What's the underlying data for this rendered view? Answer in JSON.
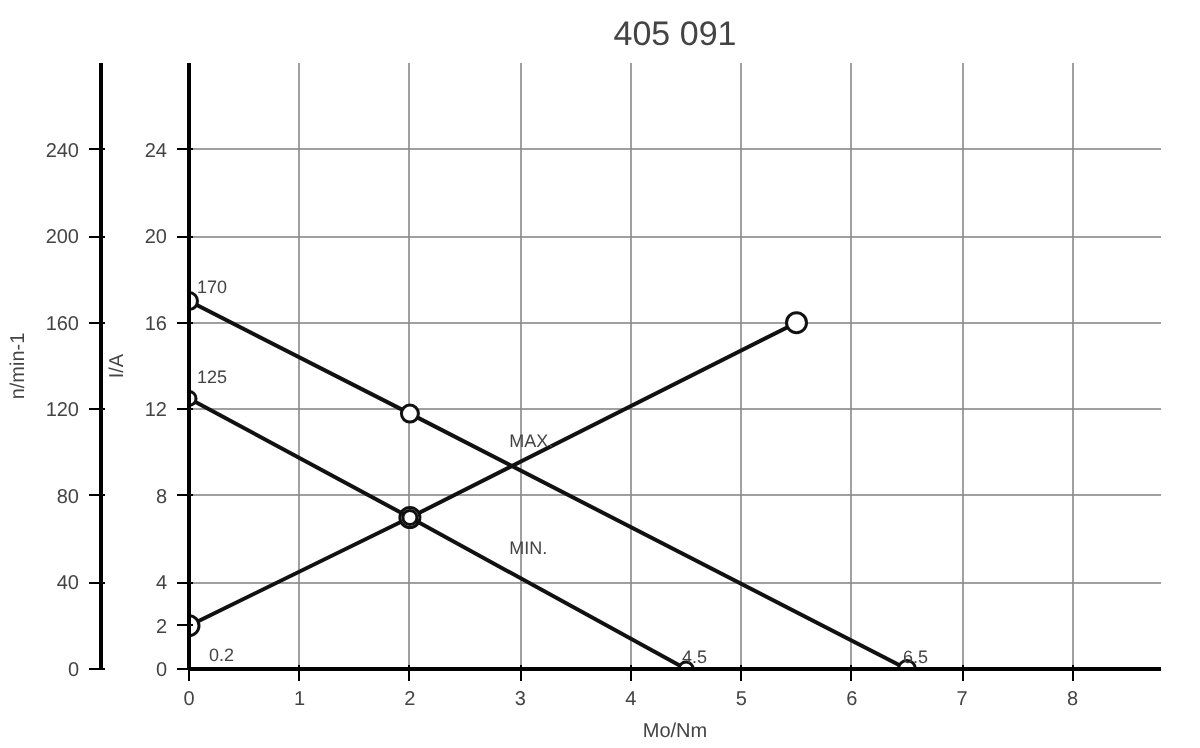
{
  "chart_data": {
    "type": "line",
    "title": "405 091",
    "xlabel": "Mo/Nm",
    "ylabel": "I/A",
    "y2label": "n/min-1",
    "xlim": [
      0,
      8.8
    ],
    "xticks": [
      0,
      1,
      2,
      3,
      4,
      5,
      6,
      7,
      8
    ],
    "ylim": [
      0,
      28
    ],
    "yticks": [
      0,
      2,
      4,
      8,
      12,
      16,
      20,
      24
    ],
    "y2lim": [
      0,
      280
    ],
    "y2ticks": [
      0,
      40,
      80,
      120,
      160,
      200,
      240
    ],
    "grid": true,
    "marker": "circle",
    "line_style": "solid",
    "series": [
      {
        "color": "#111111",
        "x": [
          0,
          2,
          5.5
        ],
        "values": [
          2,
          7,
          16
        ]
      },
      {
        "name": "MAX.",
        "color": "#111111",
        "axis": "y2",
        "x": [
          0,
          2,
          6.5
        ],
        "values": [
          170,
          118,
          0
        ]
      },
      {
        "name": "MIN.",
        "color": "#111111",
        "axis": "y2",
        "x": [
          0,
          2,
          4.5
        ],
        "values": [
          125,
          70,
          0
        ]
      }
    ],
    "annotations": [
      "170",
      "125",
      "0.2",
      {
        "text": "4.5",
        "x": 4.5,
        "y": 0
      },
      {
        "text": "6.5",
        "x": 6.5,
        "y": 0
      }
    ]
  }
}
